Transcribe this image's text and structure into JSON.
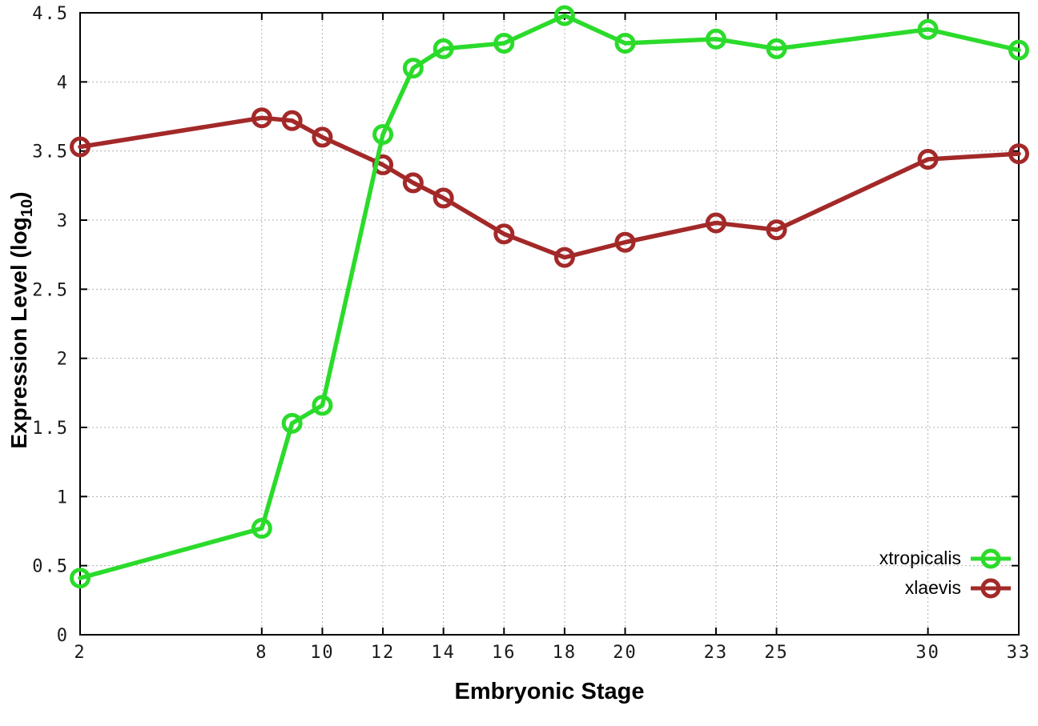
{
  "chart_data": {
    "type": "line",
    "title": "",
    "xlabel": "Embryonic Stage",
    "ylabel": "Expression Level (log10)",
    "ylabel_parts": {
      "pre": "Expression Level (log",
      "sub": "10",
      "post": ")"
    },
    "x": [
      2,
      8,
      9,
      10,
      12,
      13,
      14,
      16,
      18,
      20,
      23,
      25,
      30,
      33
    ],
    "series": [
      {
        "name": "xtropicalis",
        "color": "#2bdb2b",
        "marker": "open-circle",
        "values": [
          0.41,
          0.77,
          1.53,
          1.66,
          3.62,
          4.1,
          4.24,
          4.28,
          4.48,
          4.28,
          4.31,
          4.24,
          4.38,
          4.23
        ]
      },
      {
        "name": "xlaevis",
        "color": "#a32929",
        "marker": "open-circle",
        "values": [
          3.53,
          3.74,
          3.72,
          3.6,
          3.4,
          3.27,
          3.16,
          2.9,
          2.73,
          2.84,
          2.98,
          2.93,
          3.44,
          3.48
        ]
      }
    ],
    "xticks": [
      2,
      8,
      10,
      12,
      14,
      16,
      18,
      20,
      23,
      25,
      30,
      33
    ],
    "yticks": [
      0,
      0.5,
      1,
      1.5,
      2,
      2.5,
      3,
      3.5,
      4,
      4.5
    ],
    "xlim": [
      2,
      33
    ],
    "ylim": [
      0,
      4.5
    ],
    "grid": true,
    "grid_style": "dotted",
    "legend_position": "inside-bottom-right",
    "frame_color": "#000000",
    "grid_color": "#b0b0b0",
    "background": "#ffffff"
  }
}
